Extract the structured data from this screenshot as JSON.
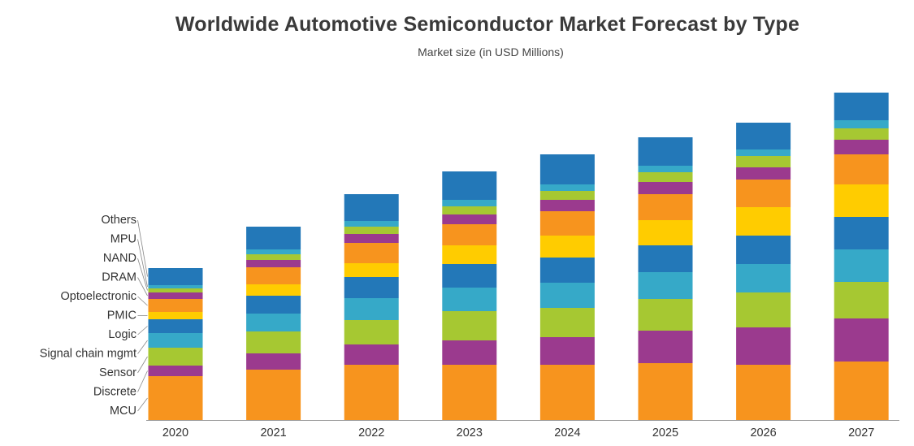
{
  "chart_data": {
    "type": "bar",
    "stacked": true,
    "title": "Worldwide Automotive Semiconductor Market Forecast by Type",
    "subtitle": "Market size (in USD Millions)",
    "categories": [
      "2020",
      "2021",
      "2022",
      "2023",
      "2024",
      "2025",
      "2026",
      "2027"
    ],
    "series": [
      {
        "name": "MCU",
        "color": "#f7941e",
        "values": [
          54,
          62,
          68,
          68,
          68,
          70,
          68,
          72
        ]
      },
      {
        "name": "Discrete",
        "color": "#9b3a8e",
        "values": [
          13,
          20,
          25,
          30,
          34,
          40,
          46,
          53
        ]
      },
      {
        "name": "Sensor",
        "color": "#a6c832",
        "values": [
          22,
          27,
          30,
          36,
          36,
          39,
          43,
          45
        ]
      },
      {
        "name": "Signal chain mgmt",
        "color": "#36a9c8",
        "values": [
          18,
          22,
          27,
          29,
          31,
          33,
          35,
          40
        ]
      },
      {
        "name": "Logic",
        "color": "#2378b8",
        "values": [
          17,
          22,
          26,
          29,
          31,
          33,
          35,
          40
        ]
      },
      {
        "name": "PMIC",
        "color": "#ffcc00",
        "values": [
          9,
          14,
          17,
          23,
          27,
          31,
          35,
          40
        ]
      },
      {
        "name": "Optoelectronic",
        "color": "#f7941e",
        "values": [
          16,
          21,
          25,
          26,
          30,
          32,
          34,
          37
        ]
      },
      {
        "name": "DRAM",
        "color": "#9b3a8e",
        "values": [
          8,
          9,
          11,
          12,
          14,
          15,
          15,
          18
        ]
      },
      {
        "name": "NAND",
        "color": "#a6c832",
        "values": [
          5,
          7,
          9,
          10,
          11,
          12,
          14,
          14
        ]
      },
      {
        "name": "MPU",
        "color": "#36a9c8",
        "values": [
          4,
          6,
          7,
          8,
          8,
          8,
          8,
          10
        ]
      },
      {
        "name": "Others",
        "color": "#2378b8",
        "values": [
          21,
          28,
          33,
          35,
          37,
          35,
          33,
          34
        ]
      }
    ],
    "grid": false,
    "legend": "left"
  }
}
